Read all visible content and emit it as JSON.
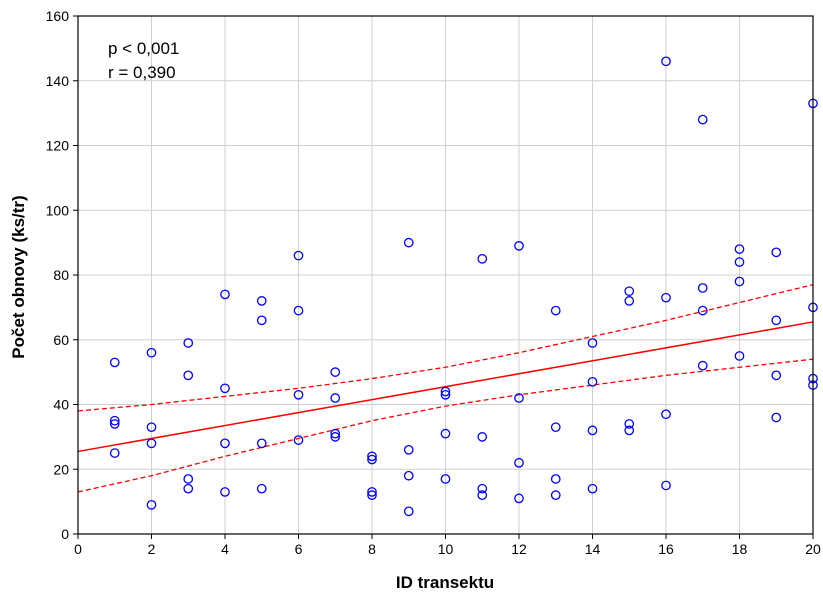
{
  "chart_data": {
    "type": "scatter",
    "title": "",
    "xlabel": "ID transektu",
    "ylabel": "Počet obnovy (ks/tr)",
    "xlim": [
      0,
      20
    ],
    "ylim": [
      0,
      160
    ],
    "xticks": [
      "0",
      "2",
      "4",
      "6",
      "8",
      "10",
      "12",
      "14",
      "16",
      "18",
      "20"
    ],
    "yticks": [
      "0",
      "20",
      "40",
      "60",
      "80",
      "100",
      "120",
      "140",
      "160"
    ],
    "grid": true,
    "annotations": [
      "p < 0,001",
      "r = 0,390"
    ],
    "points": [
      [
        1,
        53
      ],
      [
        1,
        35
      ],
      [
        1,
        34
      ],
      [
        1,
        25
      ],
      [
        2,
        56
      ],
      [
        2,
        33
      ],
      [
        2,
        28
      ],
      [
        2,
        9
      ],
      [
        3,
        59
      ],
      [
        3,
        49
      ],
      [
        3,
        17
      ],
      [
        3,
        14
      ],
      [
        4,
        74
      ],
      [
        4,
        45
      ],
      [
        4,
        28
      ],
      [
        4,
        13
      ],
      [
        5,
        72
      ],
      [
        5,
        66
      ],
      [
        5,
        28
      ],
      [
        5,
        14
      ],
      [
        6,
        86
      ],
      [
        6,
        69
      ],
      [
        6,
        43
      ],
      [
        6,
        29
      ],
      [
        7,
        50
      ],
      [
        7,
        42
      ],
      [
        7,
        31
      ],
      [
        7,
        30
      ],
      [
        8,
        24
      ],
      [
        8,
        23
      ],
      [
        8,
        13
      ],
      [
        8,
        12
      ],
      [
        9,
        90
      ],
      [
        9,
        26
      ],
      [
        9,
        18
      ],
      [
        9,
        7
      ],
      [
        10,
        44
      ],
      [
        10,
        43
      ],
      [
        10,
        31
      ],
      [
        10,
        17
      ],
      [
        11,
        85
      ],
      [
        11,
        30
      ],
      [
        11,
        14
      ],
      [
        11,
        12
      ],
      [
        12,
        89
      ],
      [
        12,
        42
      ],
      [
        12,
        22
      ],
      [
        12,
        11
      ],
      [
        13,
        69
      ],
      [
        13,
        33
      ],
      [
        13,
        17
      ],
      [
        13,
        12
      ],
      [
        14,
        59
      ],
      [
        14,
        47
      ],
      [
        14,
        32
      ],
      [
        14,
        14
      ],
      [
        15,
        75
      ],
      [
        15,
        72
      ],
      [
        15,
        34
      ],
      [
        15,
        32
      ],
      [
        16,
        146
      ],
      [
        16,
        73
      ],
      [
        16,
        37
      ],
      [
        16,
        15
      ],
      [
        17,
        128
      ],
      [
        17,
        76
      ],
      [
        17,
        69
      ],
      [
        17,
        52
      ],
      [
        18,
        88
      ],
      [
        18,
        84
      ],
      [
        18,
        78
      ],
      [
        18,
        55
      ],
      [
        19,
        87
      ],
      [
        19,
        66
      ],
      [
        19,
        49
      ],
      [
        19,
        36
      ],
      [
        20,
        133
      ],
      [
        20,
        70
      ],
      [
        20,
        48
      ],
      [
        20,
        46
      ]
    ],
    "regression_line": {
      "intercept": 25.5,
      "slope": 2.0
    },
    "confidence_band": {
      "upper": [
        [
          0,
          38
        ],
        [
          2,
          40
        ],
        [
          4,
          42.5
        ],
        [
          6,
          45
        ],
        [
          8,
          48
        ],
        [
          10,
          51.5
        ],
        [
          12,
          56
        ],
        [
          14,
          61
        ],
        [
          16,
          66
        ],
        [
          18,
          71.5
        ],
        [
          20,
          77
        ]
      ],
      "lower": [
        [
          0,
          13
        ],
        [
          2,
          18
        ],
        [
          4,
          24
        ],
        [
          6,
          29.5
        ],
        [
          8,
          35
        ],
        [
          10,
          39.5
        ],
        [
          12,
          43
        ],
        [
          14,
          46
        ],
        [
          16,
          49
        ],
        [
          18,
          51.5
        ],
        [
          20,
          54
        ]
      ]
    },
    "colors": {
      "points": "#0000ff",
      "regression": "#ff0000",
      "grid": "#cfcfcf"
    }
  }
}
